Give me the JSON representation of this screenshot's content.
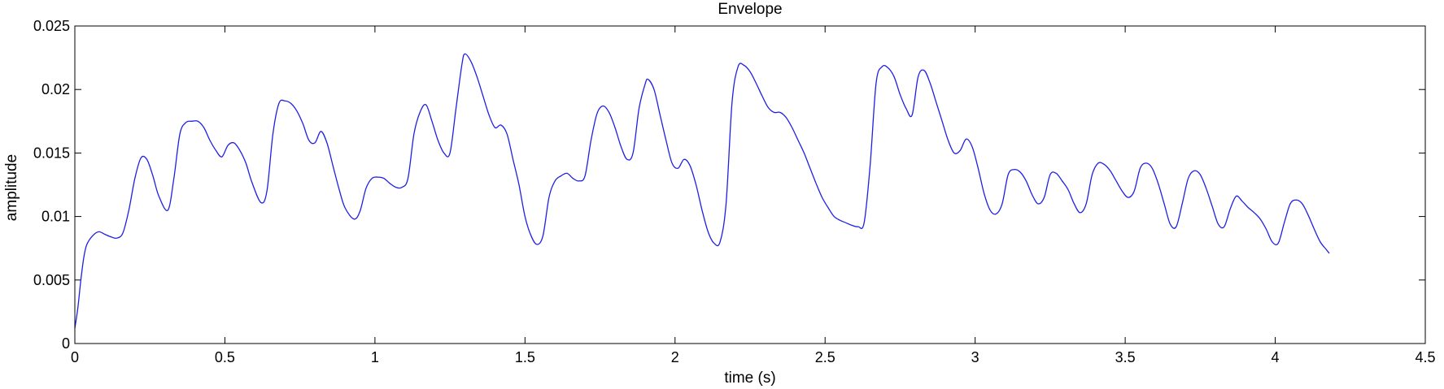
{
  "chart_data": {
    "type": "line",
    "title": "Envelope",
    "xlabel": "time (s)",
    "ylabel": "amplitude",
    "xlim": [
      0,
      4.5
    ],
    "ylim": [
      0,
      0.025
    ],
    "xticks": [
      0,
      0.5,
      1,
      1.5,
      2,
      2.5,
      3,
      3.5,
      4,
      4.5
    ],
    "xtick_labels": [
      "0",
      "0.5",
      "1",
      "1.5",
      "2",
      "2.5",
      "3",
      "3.5",
      "4",
      "4.5"
    ],
    "yticks": [
      0,
      0.005,
      0.01,
      0.015,
      0.02,
      0.025
    ],
    "ytick_labels": [
      "0",
      "0.005",
      "0.01",
      "0.015",
      "0.02",
      "0.025"
    ],
    "grid": false,
    "series": [
      {
        "color": "#1f1fe6",
        "x": [
          0,
          0.01,
          0.02,
          0.03,
          0.04,
          0.06,
          0.08,
          0.1,
          0.12,
          0.14,
          0.16,
          0.18,
          0.2,
          0.22,
          0.24,
          0.26,
          0.28,
          0.31,
          0.33,
          0.35,
          0.37,
          0.39,
          0.41,
          0.43,
          0.45,
          0.47,
          0.49,
          0.51,
          0.53,
          0.55,
          0.57,
          0.59,
          0.62,
          0.64,
          0.66,
          0.68,
          0.7,
          0.72,
          0.74,
          0.76,
          0.78,
          0.8,
          0.82,
          0.84,
          0.86,
          0.88,
          0.9,
          0.93,
          0.95,
          0.97,
          0.99,
          1.01,
          1.03,
          1.05,
          1.07,
          1.09,
          1.11,
          1.13,
          1.15,
          1.17,
          1.19,
          1.21,
          1.23,
          1.25,
          1.27,
          1.29,
          1.3,
          1.32,
          1.34,
          1.36,
          1.38,
          1.4,
          1.42,
          1.44,
          1.46,
          1.48,
          1.5,
          1.52,
          1.54,
          1.56,
          1.58,
          1.6,
          1.62,
          1.64,
          1.66,
          1.68,
          1.7,
          1.72,
          1.74,
          1.76,
          1.78,
          1.8,
          1.82,
          1.84,
          1.86,
          1.88,
          1.9,
          1.91,
          1.93,
          1.95,
          1.97,
          1.99,
          2.01,
          2.03,
          2.05,
          2.07,
          2.09,
          2.11,
          2.13,
          2.15,
          2.17,
          2.19,
          2.21,
          2.23,
          2.25,
          2.27,
          2.29,
          2.31,
          2.33,
          2.35,
          2.37,
          2.39,
          2.41,
          2.43,
          2.45,
          2.47,
          2.49,
          2.51,
          2.53,
          2.55,
          2.57,
          2.59,
          2.61,
          2.63,
          2.65,
          2.67,
          2.69,
          2.71,
          2.73,
          2.75,
          2.77,
          2.79,
          2.81,
          2.83,
          2.85,
          2.87,
          2.89,
          2.91,
          2.93,
          2.95,
          2.97,
          2.99,
          3.01,
          3.03,
          3.05,
          3.07,
          3.09,
          3.11,
          3.13,
          3.15,
          3.17,
          3.19,
          3.21,
          3.23,
          3.25,
          3.27,
          3.29,
          3.31,
          3.33,
          3.35,
          3.37,
          3.39,
          3.41,
          3.43,
          3.45,
          3.47,
          3.49,
          3.51,
          3.53,
          3.55,
          3.57,
          3.59,
          3.61,
          3.63,
          3.65,
          3.67,
          3.69,
          3.71,
          3.73,
          3.75,
          3.77,
          3.79,
          3.81,
          3.83,
          3.85,
          3.87,
          3.89,
          3.91,
          3.93,
          3.95,
          3.97,
          3.99,
          4.01,
          4.03,
          4.05,
          4.07,
          4.09,
          4.11,
          4.13,
          4.15,
          4.17,
          4.18
        ],
        "y": [
          0.0012,
          0.0028,
          0.005,
          0.0068,
          0.0078,
          0.0085,
          0.0088,
          0.0086,
          0.0084,
          0.0083,
          0.0087,
          0.0105,
          0.013,
          0.0146,
          0.0145,
          0.0132,
          0.0116,
          0.0105,
          0.013,
          0.0165,
          0.0174,
          0.0175,
          0.0175,
          0.017,
          0.016,
          0.0152,
          0.0147,
          0.0156,
          0.0158,
          0.0152,
          0.0142,
          0.0127,
          0.0111,
          0.012,
          0.0165,
          0.0189,
          0.0191,
          0.0189,
          0.0183,
          0.0173,
          0.016,
          0.0158,
          0.0167,
          0.0158,
          0.014,
          0.0122,
          0.0107,
          0.0098,
          0.0104,
          0.0122,
          0.013,
          0.0131,
          0.013,
          0.0126,
          0.0123,
          0.0123,
          0.013,
          0.0165,
          0.0182,
          0.0188,
          0.0175,
          0.016,
          0.015,
          0.015,
          0.0185,
          0.022,
          0.0228,
          0.0222,
          0.021,
          0.0195,
          0.018,
          0.017,
          0.0172,
          0.0165,
          0.0145,
          0.0125,
          0.01,
          0.0085,
          0.0078,
          0.0085,
          0.0115,
          0.0128,
          0.0132,
          0.0134,
          0.013,
          0.0128,
          0.0132,
          0.016,
          0.0181,
          0.0187,
          0.0182,
          0.017,
          0.0155,
          0.0145,
          0.015,
          0.0185,
          0.0204,
          0.0208,
          0.02,
          0.018,
          0.016,
          0.0142,
          0.0138,
          0.0145,
          0.014,
          0.0125,
          0.0105,
          0.0088,
          0.0079,
          0.008,
          0.011,
          0.019,
          0.0218,
          0.0219,
          0.0214,
          0.0205,
          0.0195,
          0.0186,
          0.0182,
          0.0182,
          0.0178,
          0.017,
          0.016,
          0.015,
          0.0138,
          0.0126,
          0.0115,
          0.0107,
          0.01,
          0.0097,
          0.0095,
          0.0093,
          0.0092,
          0.0095,
          0.014,
          0.0205,
          0.0218,
          0.0217,
          0.021,
          0.0196,
          0.0185,
          0.018,
          0.021,
          0.0215,
          0.0205,
          0.019,
          0.0175,
          0.016,
          0.015,
          0.0152,
          0.0161,
          0.0155,
          0.0138,
          0.0118,
          0.0105,
          0.0102,
          0.011,
          0.0133,
          0.0137,
          0.0135,
          0.0128,
          0.0117,
          0.011,
          0.0115,
          0.0133,
          0.0134,
          0.0128,
          0.0121,
          0.011,
          0.0103,
          0.011,
          0.0133,
          0.0142,
          0.0141,
          0.0136,
          0.0128,
          0.012,
          0.0115,
          0.012,
          0.0138,
          0.0142,
          0.0138,
          0.0126,
          0.011,
          0.0094,
          0.0092,
          0.011,
          0.013,
          0.0136,
          0.0133,
          0.0122,
          0.0108,
          0.0094,
          0.0092,
          0.0106,
          0.0116,
          0.0112,
          0.0107,
          0.0103,
          0.0098,
          0.009,
          0.008,
          0.0079,
          0.0095,
          0.011,
          0.0113,
          0.011,
          0.0101,
          0.009,
          0.008,
          0.0074,
          0.0071
        ]
      }
    ]
  }
}
